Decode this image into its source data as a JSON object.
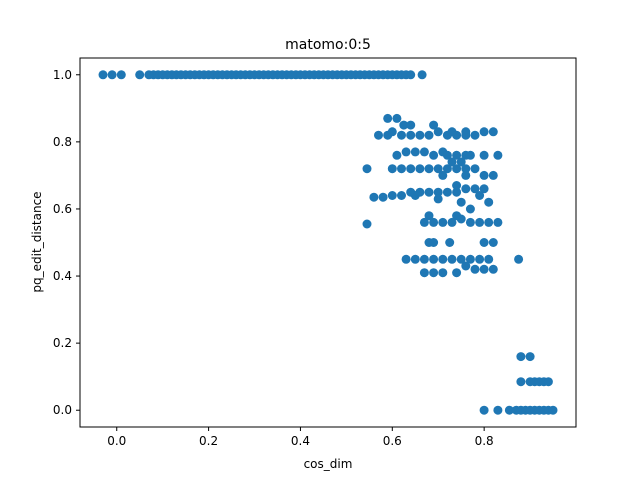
{
  "chart_data": {
    "type": "scatter",
    "title": "matomo:0:5",
    "xlabel": "cos_dim",
    "ylabel": "pq_edit_distance",
    "xlim": [
      -0.08,
      1.0
    ],
    "ylim": [
      -0.05,
      1.05
    ],
    "xticks": [
      0.0,
      0.2,
      0.4,
      0.6,
      0.8
    ],
    "xtick_labels": [
      "0.0",
      "0.2",
      "0.4",
      "0.6",
      "0.8"
    ],
    "yticks": [
      0.0,
      0.2,
      0.4,
      0.6,
      0.8,
      1.0
    ],
    "ytick_labels": [
      "0.0",
      "0.2",
      "0.4",
      "0.6",
      "0.8",
      "1.0"
    ],
    "grid": false,
    "legend": "none",
    "marker_color": "#1f77b4",
    "series": [
      {
        "points": [
          [
            -0.03,
            1.0
          ],
          [
            -0.01,
            1.0
          ],
          [
            0.01,
            1.0
          ],
          [
            0.05,
            1.0
          ],
          [
            0.07,
            1.0
          ],
          [
            0.08,
            1.0
          ],
          [
            0.09,
            1.0
          ],
          [
            0.1,
            1.0
          ],
          [
            0.11,
            1.0
          ],
          [
            0.12,
            1.0
          ],
          [
            0.13,
            1.0
          ],
          [
            0.14,
            1.0
          ],
          [
            0.15,
            1.0
          ],
          [
            0.16,
            1.0
          ],
          [
            0.17,
            1.0
          ],
          [
            0.18,
            1.0
          ],
          [
            0.19,
            1.0
          ],
          [
            0.2,
            1.0
          ],
          [
            0.21,
            1.0
          ],
          [
            0.22,
            1.0
          ],
          [
            0.23,
            1.0
          ],
          [
            0.24,
            1.0
          ],
          [
            0.25,
            1.0
          ],
          [
            0.26,
            1.0
          ],
          [
            0.27,
            1.0
          ],
          [
            0.28,
            1.0
          ],
          [
            0.29,
            1.0
          ],
          [
            0.3,
            1.0
          ],
          [
            0.31,
            1.0
          ],
          [
            0.32,
            1.0
          ],
          [
            0.33,
            1.0
          ],
          [
            0.34,
            1.0
          ],
          [
            0.35,
            1.0
          ],
          [
            0.36,
            1.0
          ],
          [
            0.37,
            1.0
          ],
          [
            0.38,
            1.0
          ],
          [
            0.39,
            1.0
          ],
          [
            0.4,
            1.0
          ],
          [
            0.41,
            1.0
          ],
          [
            0.42,
            1.0
          ],
          [
            0.43,
            1.0
          ],
          [
            0.44,
            1.0
          ],
          [
            0.45,
            1.0
          ],
          [
            0.46,
            1.0
          ],
          [
            0.47,
            1.0
          ],
          [
            0.48,
            1.0
          ],
          [
            0.49,
            1.0
          ],
          [
            0.5,
            1.0
          ],
          [
            0.51,
            1.0
          ],
          [
            0.52,
            1.0
          ],
          [
            0.53,
            1.0
          ],
          [
            0.54,
            1.0
          ],
          [
            0.55,
            1.0
          ],
          [
            0.56,
            1.0
          ],
          [
            0.57,
            1.0
          ],
          [
            0.58,
            1.0
          ],
          [
            0.59,
            1.0
          ],
          [
            0.6,
            1.0
          ],
          [
            0.61,
            1.0
          ],
          [
            0.62,
            1.0
          ],
          [
            0.63,
            1.0
          ],
          [
            0.64,
            1.0
          ],
          [
            0.665,
            1.0
          ],
          [
            0.59,
            0.87
          ],
          [
            0.61,
            0.87
          ],
          [
            0.625,
            0.85
          ],
          [
            0.64,
            0.85
          ],
          [
            0.57,
            0.82
          ],
          [
            0.59,
            0.82
          ],
          [
            0.6,
            0.83
          ],
          [
            0.62,
            0.82
          ],
          [
            0.64,
            0.82
          ],
          [
            0.66,
            0.82
          ],
          [
            0.68,
            0.82
          ],
          [
            0.69,
            0.85
          ],
          [
            0.7,
            0.83
          ],
          [
            0.72,
            0.82
          ],
          [
            0.74,
            0.82
          ],
          [
            0.76,
            0.82
          ],
          [
            0.78,
            0.82
          ],
          [
            0.8,
            0.83
          ],
          [
            0.82,
            0.83
          ],
          [
            0.73,
            0.83
          ],
          [
            0.76,
            0.83
          ],
          [
            0.61,
            0.76
          ],
          [
            0.63,
            0.77
          ],
          [
            0.65,
            0.77
          ],
          [
            0.67,
            0.77
          ],
          [
            0.69,
            0.76
          ],
          [
            0.71,
            0.77
          ],
          [
            0.72,
            0.76
          ],
          [
            0.74,
            0.76
          ],
          [
            0.76,
            0.76
          ],
          [
            0.77,
            0.76
          ],
          [
            0.8,
            0.76
          ],
          [
            0.83,
            0.76
          ],
          [
            0.545,
            0.72
          ],
          [
            0.6,
            0.72
          ],
          [
            0.62,
            0.72
          ],
          [
            0.64,
            0.72
          ],
          [
            0.66,
            0.72
          ],
          [
            0.68,
            0.72
          ],
          [
            0.7,
            0.72
          ],
          [
            0.72,
            0.72
          ],
          [
            0.74,
            0.72
          ],
          [
            0.76,
            0.72
          ],
          [
            0.78,
            0.72
          ],
          [
            0.73,
            0.74
          ],
          [
            0.75,
            0.74
          ],
          [
            0.8,
            0.7
          ],
          [
            0.82,
            0.7
          ],
          [
            0.76,
            0.7
          ],
          [
            0.71,
            0.7
          ],
          [
            0.56,
            0.635
          ],
          [
            0.58,
            0.635
          ],
          [
            0.6,
            0.64
          ],
          [
            0.62,
            0.64
          ],
          [
            0.64,
            0.65
          ],
          [
            0.65,
            0.64
          ],
          [
            0.66,
            0.65
          ],
          [
            0.68,
            0.65
          ],
          [
            0.7,
            0.65
          ],
          [
            0.72,
            0.65
          ],
          [
            0.74,
            0.65
          ],
          [
            0.76,
            0.66
          ],
          [
            0.78,
            0.66
          ],
          [
            0.8,
            0.66
          ],
          [
            0.74,
            0.67
          ],
          [
            0.79,
            0.64
          ],
          [
            0.81,
            0.62
          ],
          [
            0.75,
            0.62
          ],
          [
            0.77,
            0.6
          ],
          [
            0.7,
            0.63
          ],
          [
            0.545,
            0.555
          ],
          [
            0.68,
            0.58
          ],
          [
            0.67,
            0.56
          ],
          [
            0.69,
            0.56
          ],
          [
            0.71,
            0.56
          ],
          [
            0.73,
            0.56
          ],
          [
            0.75,
            0.57
          ],
          [
            0.77,
            0.56
          ],
          [
            0.79,
            0.56
          ],
          [
            0.81,
            0.56
          ],
          [
            0.83,
            0.56
          ],
          [
            0.74,
            0.58
          ],
          [
            0.68,
            0.5
          ],
          [
            0.69,
            0.5
          ],
          [
            0.725,
            0.5
          ],
          [
            0.8,
            0.5
          ],
          [
            0.82,
            0.5
          ],
          [
            0.63,
            0.45
          ],
          [
            0.65,
            0.45
          ],
          [
            0.67,
            0.45
          ],
          [
            0.69,
            0.45
          ],
          [
            0.71,
            0.45
          ],
          [
            0.73,
            0.45
          ],
          [
            0.75,
            0.45
          ],
          [
            0.77,
            0.45
          ],
          [
            0.79,
            0.45
          ],
          [
            0.81,
            0.45
          ],
          [
            0.875,
            0.45
          ],
          [
            0.76,
            0.43
          ],
          [
            0.67,
            0.41
          ],
          [
            0.69,
            0.41
          ],
          [
            0.71,
            0.41
          ],
          [
            0.74,
            0.41
          ],
          [
            0.78,
            0.42
          ],
          [
            0.8,
            0.42
          ],
          [
            0.82,
            0.42
          ],
          [
            0.88,
            0.16
          ],
          [
            0.9,
            0.16
          ],
          [
            0.88,
            0.085
          ],
          [
            0.9,
            0.085
          ],
          [
            0.91,
            0.085
          ],
          [
            0.92,
            0.085
          ],
          [
            0.93,
            0.085
          ],
          [
            0.94,
            0.085
          ],
          [
            0.8,
            0.0
          ],
          [
            0.83,
            0.0
          ],
          [
            0.855,
            0.0
          ],
          [
            0.87,
            0.0
          ],
          [
            0.88,
            0.0
          ],
          [
            0.89,
            0.0
          ],
          [
            0.9,
            0.0
          ],
          [
            0.91,
            0.0
          ],
          [
            0.92,
            0.0
          ],
          [
            0.93,
            0.0
          ],
          [
            0.94,
            0.0
          ],
          [
            0.95,
            0.0
          ]
        ]
      }
    ]
  }
}
